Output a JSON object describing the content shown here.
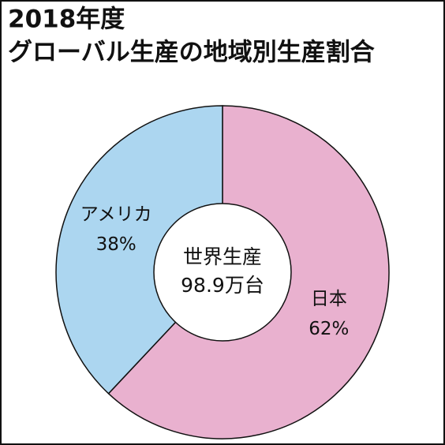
{
  "chart_data": {
    "type": "pie",
    "title": "2018年度",
    "subtitle": "グローバル生産の地域別生産割合",
    "center_text": [
      "世界生産",
      "98.9万台"
    ],
    "categories": [
      "日本",
      "アメリカ"
    ],
    "values": [
      62,
      38
    ],
    "value_labels": [
      "62%",
      "38%"
    ],
    "colors": [
      "#e9b1cf",
      "#acd6f0"
    ]
  }
}
